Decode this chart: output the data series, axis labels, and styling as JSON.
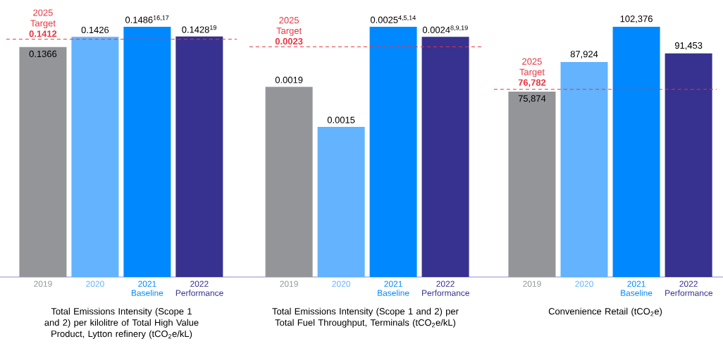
{
  "chart_data": [
    {
      "type": "bar",
      "categories": [
        "2019",
        "2020",
        "2021 Baseline",
        "2022 Performance"
      ],
      "values": [
        0.1366,
        0.1426,
        0.1486,
        0.1428
      ],
      "colors": [
        "#939598",
        "#63b3ff",
        "#0088ff",
        "#37318f"
      ],
      "value_labels": [
        "0.1366",
        "0.1426",
        "0.1486$^{16,17}$",
        "0.1428$^{19}$"
      ],
      "tick_labels": "x",
      "ref_lines": [
        {
          "axis": "y",
          "value": 0.1412,
          "label": "2025 Target **0.1412**",
          "color": "#e8343f",
          "line_style": "dashed"
        }
      ],
      "xlabel": "Total Emissions Intensity (Scope 1 and 2) per kilolitre of Total High Value Product, Lytton refinery (tCO$_{2}$e/kL)"
    },
    {
      "type": "bar",
      "categories": [
        "2019",
        "2020",
        "2021 Baseline",
        "2022 Performance"
      ],
      "values": [
        0.0019,
        0.0015,
        0.0025,
        0.0024
      ],
      "colors": [
        "#939598",
        "#63b3ff",
        "#0088ff",
        "#37318f"
      ],
      "value_labels": [
        "0.0019",
        "0.0015",
        "0.0025$^{4,5,14}$",
        "0.0024$^{8,9,19}$"
      ],
      "tick_labels": "x",
      "ref_lines": [
        {
          "axis": "y",
          "value": 0.0023,
          "label": "2025 Target **0.0023**",
          "color": "#e8343f",
          "line_style": "dashed"
        }
      ],
      "xlabel": "Total Emissions Intensity (Scope 1 and 2) per Total Fuel Throughput, Terminals (tCO$_{2}$e/kL)"
    },
    {
      "type": "bar",
      "categories": [
        "2019",
        "2020",
        "2021 Baseline",
        "2022 Performance"
      ],
      "values": [
        75874,
        87924,
        102376,
        91453
      ],
      "colors": [
        "#939598",
        "#63b3ff",
        "#0088ff",
        "#37318f"
      ],
      "value_labels": [
        "75,874",
        "87,924",
        "102,376",
        "91,453"
      ],
      "tick_labels": "x",
      "ref_lines": [
        {
          "axis": "y",
          "value": 76782,
          "label": "2025 Target **76,782**",
          "color": "#e8343f",
          "line_style": "dashed"
        }
      ],
      "xlabel": "Convenience Retail (tCO$_{2}$e)"
    }
  ]
}
